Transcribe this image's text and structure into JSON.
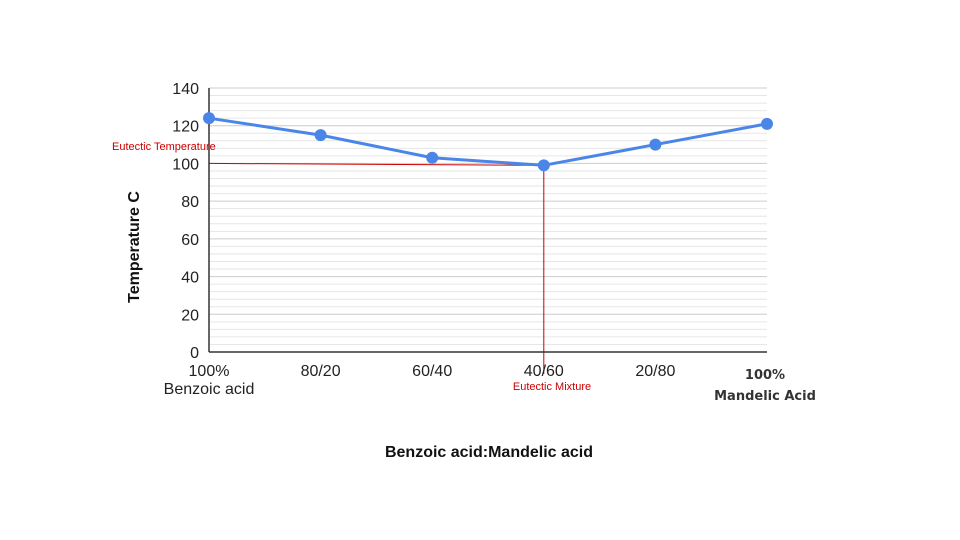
{
  "chart_data": {
    "type": "line",
    "categories": [
      "100%\nBenzoic acid",
      "80/20",
      "60/40",
      "40/60",
      "20/80",
      "100%\nMandelic Acid"
    ],
    "series": [
      {
        "values": [
          124,
          115,
          103,
          99,
          110,
          121
        ],
        "color": "#4a86e8"
      }
    ],
    "xlabel": "Benzoic acid:Mandelic acid",
    "ylabel": "Temperature C",
    "ylim": [
      0,
      140
    ],
    "yticks": [
      0,
      20,
      40,
      60,
      80,
      100,
      120,
      140
    ],
    "grid": true,
    "annotations": [
      {
        "text": "Eutectic Temperature",
        "y": 100,
        "color": "#cc0000"
      },
      {
        "text": "Eutectic Mixture",
        "x": "40/60",
        "color": "#cc0000"
      }
    ]
  }
}
